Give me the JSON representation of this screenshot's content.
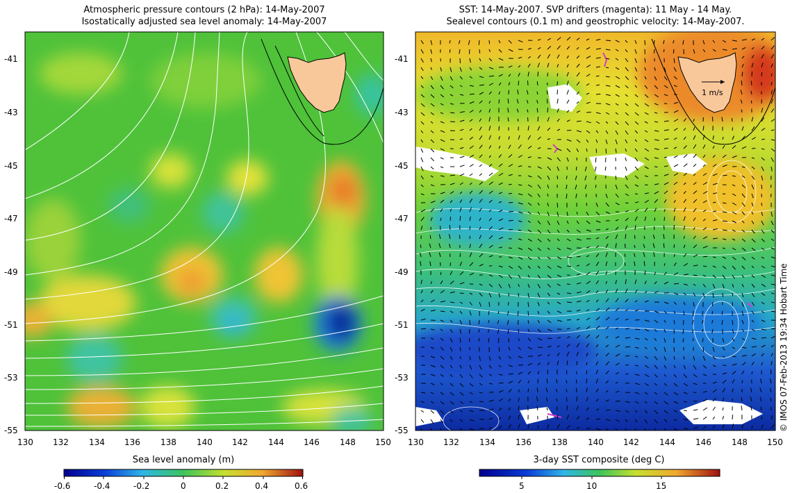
{
  "left_panel": {
    "title_line1": "Atmospheric pressure contours (2 hPa): 14-May-2007",
    "title_line2": "Isostatically adjusted sea level anomaly: 14-May-2007",
    "lat_ticks": [
      "-41",
      "-43",
      "-45",
      "-47",
      "-49",
      "-51",
      "-53",
      "-55"
    ],
    "lon_ticks": [
      "130",
      "132",
      "134",
      "136",
      "138",
      "140",
      "142",
      "144",
      "146",
      "148",
      "150"
    ],
    "colorbar_label": "Sea level anomaly (m)",
    "colorbar_ticks": [
      "-0.6",
      "-0.4",
      "-0.2",
      "0",
      "0.2",
      "0.4",
      "0.6"
    ]
  },
  "right_panel": {
    "title_line1": "SST: 14-May-2007. SVP drifters (magenta): 11 May - 14 May.",
    "title_line2": "Sealevel contours (0.1 m) and geostrophic velocity: 14-May-2007.",
    "lat_ticks": [
      "-41",
      "-43",
      "-45",
      "-47",
      "-49",
      "-51",
      "-53",
      "-55"
    ],
    "lon_ticks": [
      "130",
      "132",
      "134",
      "136",
      "138",
      "140",
      "142",
      "144",
      "146",
      "148",
      "150"
    ],
    "velocity_scale_label": "1 m/s",
    "colorbar_label": "3-day SST composite (deg C)",
    "colorbar_ticks": [
      "5",
      "10",
      "15"
    ]
  },
  "credit": "© IMOS 07-Feb-2013 19:34 Hobart Time",
  "colors": {
    "land": "#f9c89a",
    "contour": "#ffffff",
    "drifter": "#d13bd1"
  }
}
